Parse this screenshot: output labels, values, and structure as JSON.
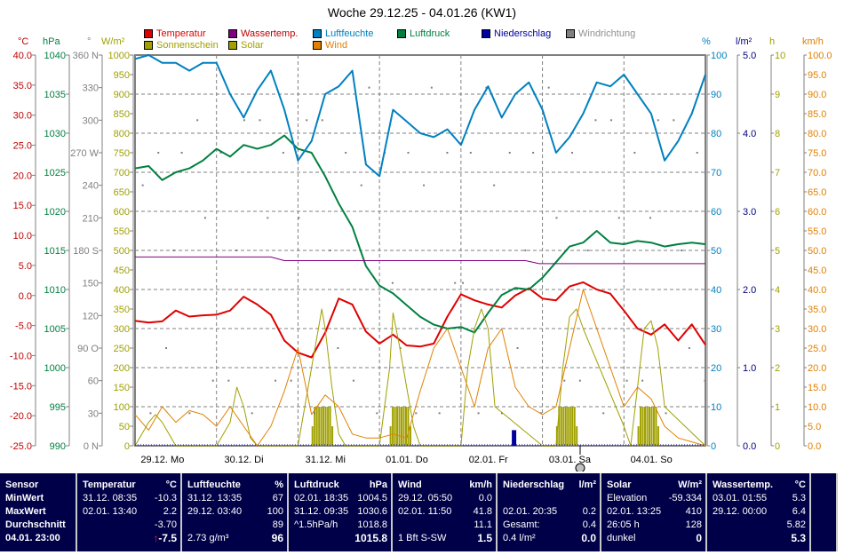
{
  "title": "Woche 29.12.25 - 04.01.26 (KW1)",
  "legend": [
    {
      "label": "Temperatur",
      "color": "#e00000"
    },
    {
      "label": "Wassertemp.",
      "color": "#800080"
    },
    {
      "label": "Luftfeuchte",
      "color": "#0080c0"
    },
    {
      "label": "Luftdruck",
      "color": "#008040"
    },
    {
      "label": "Niederschlag",
      "color": "#0000a0"
    },
    {
      "label": "Windrichtung",
      "color": "#808080"
    },
    {
      "label": "Sonnenschein",
      "color": "#a0a000"
    },
    {
      "label": "Solar",
      "color": "#a0a000"
    },
    {
      "label": "Wind",
      "color": "#e08000"
    }
  ],
  "units": {
    "temp": "°C",
    "press": "hPa",
    "dir": "°",
    "solar": "W/m²",
    "hum": "%",
    "rain": "l/m²",
    "sun": "h",
    "wind": "km/h"
  },
  "chart_data": {
    "type": "line",
    "title": "Woche 29.12.25 - 04.01.26 (KW1)",
    "x_labels": [
      "29.12. Mo",
      "30.12. Di",
      "31.12. Mi",
      "01.01. Do",
      "02.01. Fr",
      "03.01. Sa",
      "04.01. So"
    ],
    "x_range_hours": [
      0,
      168
    ],
    "grid": true,
    "axes": {
      "temp": {
        "label": "°C",
        "range": [
          -25,
          40
        ],
        "ticks": [
          "40.0",
          "35.0",
          "30.0",
          "25.0",
          "20.0",
          "15.0",
          "10.0",
          "5.0",
          "0.0",
          "-5.0",
          "-10.0",
          "-15.0",
          "-20.0",
          "-25.0"
        ],
        "color": "#c00000"
      },
      "press": {
        "label": "hPa",
        "range": [
          990,
          1040
        ],
        "ticks": [
          "1040",
          "1035",
          "1030",
          "1025",
          "1020",
          "1015",
          "1010",
          "1005",
          "1000",
          "995",
          "990"
        ],
        "color": "#008040"
      },
      "dir": {
        "label": "°",
        "range": [
          0,
          360
        ],
        "ticks": [
          "360 N",
          "330",
          "300",
          "270 W",
          "240",
          "210",
          "180 S",
          "150",
          "120",
          "90 O",
          "60",
          "30",
          "0 N"
        ],
        "color": "#808080"
      },
      "solar": {
        "label": "W/m²",
        "range": [
          0,
          1000
        ],
        "ticks": [
          "1000",
          "950",
          "900",
          "850",
          "800",
          "750",
          "700",
          "650",
          "600",
          "550",
          "500",
          "450",
          "400",
          "350",
          "300",
          "250",
          "200",
          "150",
          "100",
          "50",
          "0"
        ],
        "color": "#a0a000"
      },
      "hum": {
        "label": "%",
        "range": [
          0,
          100
        ],
        "ticks": [
          "100",
          "90",
          "80",
          "70",
          "60",
          "50",
          "40",
          "30",
          "20",
          "10",
          "0"
        ],
        "color": "#0080c0"
      },
      "rain": {
        "label": "l/m²",
        "range": [
          0,
          5
        ],
        "ticks": [
          "5.0",
          "4.0",
          "3.0",
          "2.0",
          "1.0",
          "0.0"
        ],
        "color": "#000080"
      },
      "sun": {
        "label": "h",
        "range": [
          0,
          10
        ],
        "ticks": [
          "10",
          "9",
          "8",
          "7",
          "6",
          "5",
          "4",
          "3",
          "2",
          "1",
          "0"
        ],
        "color": "#a0a000"
      },
      "wind": {
        "label": "km/h",
        "range": [
          0,
          100
        ],
        "ticks": [
          "100.0",
          "95.0",
          "90.0",
          "85.0",
          "80.0",
          "75.0",
          "70.0",
          "65.0",
          "60.0",
          "55.0",
          "50.0",
          "45.0",
          "40.0",
          "35.0",
          "30.0",
          "25.0",
          "20.0",
          "15.0",
          "10.0",
          "5.0",
          "0.0"
        ],
        "color": "#e08000"
      }
    },
    "series": [
      {
        "name": "Temperatur",
        "axis": "temp",
        "color": "#e00000",
        "x": [
          0,
          4,
          8,
          12,
          16,
          20,
          24,
          28,
          32,
          36,
          40,
          44,
          48,
          52,
          56,
          60,
          64,
          68,
          72,
          76,
          80,
          84,
          88,
          92,
          96,
          100,
          104,
          108,
          112,
          116,
          120,
          124,
          128,
          132,
          136,
          140,
          144,
          148,
          152,
          156,
          160,
          164,
          168
        ],
        "y": [
          -4.2,
          -4.5,
          -4.3,
          -2.5,
          -3.5,
          -3.3,
          -3.2,
          -2.5,
          -0.2,
          -1.5,
          -3.2,
          -7.5,
          -9.5,
          -10.3,
          -6.2,
          -0.5,
          -1.5,
          -6.0,
          -8.0,
          -6.5,
          -8.3,
          -8.5,
          -8.0,
          -3.5,
          0.2,
          -0.8,
          -1.5,
          -2.0,
          0.0,
          1.2,
          -0.5,
          -0.8,
          1.5,
          2.2,
          1.0,
          0.3,
          -2.5,
          -5.5,
          -6.5,
          -4.8,
          -7.5,
          -4.8,
          -8.2
        ]
      },
      {
        "name": "Luftdruck",
        "axis": "press",
        "color": "#008040",
        "x": [
          0,
          4,
          8,
          12,
          16,
          20,
          24,
          28,
          32,
          36,
          40,
          44,
          48,
          52,
          56,
          60,
          64,
          68,
          72,
          76,
          80,
          84,
          88,
          92,
          96,
          100,
          104,
          108,
          112,
          116,
          120,
          124,
          128,
          132,
          136,
          140,
          144,
          148,
          152,
          156,
          160,
          164,
          168
        ],
        "y": [
          1025.5,
          1025.8,
          1024.0,
          1025.0,
          1025.5,
          1026.5,
          1028.0,
          1027.0,
          1028.5,
          1028.0,
          1028.5,
          1029.7,
          1028.0,
          1027.5,
          1024.5,
          1021.0,
          1018.0,
          1013.0,
          1010.5,
          1009.5,
          1008.0,
          1006.5,
          1005.5,
          1005.0,
          1005.2,
          1004.5,
          1007.0,
          1009.3,
          1010.2,
          1010.0,
          1011.5,
          1013.5,
          1015.5,
          1016.0,
          1017.5,
          1016.0,
          1015.8,
          1016.2,
          1016.0,
          1015.5,
          1015.8,
          1016.0,
          1015.8
        ]
      },
      {
        "name": "Luftfeuchte",
        "axis": "hum",
        "color": "#0080c0",
        "x": [
          0,
          4,
          8,
          12,
          16,
          20,
          24,
          28,
          32,
          36,
          40,
          44,
          48,
          52,
          56,
          60,
          64,
          68,
          72,
          76,
          80,
          84,
          88,
          92,
          96,
          100,
          104,
          108,
          112,
          116,
          120,
          124,
          128,
          132,
          136,
          140,
          144,
          148,
          152,
          156,
          160,
          164,
          168
        ],
        "y": [
          99,
          100,
          98,
          98,
          96,
          98,
          98,
          90,
          84,
          91,
          96,
          86,
          73,
          78,
          90,
          92,
          96,
          72,
          69,
          86,
          83,
          80,
          79,
          81,
          77,
          86,
          92,
          84,
          90,
          93,
          86,
          75,
          79,
          85,
          93,
          92,
          95,
          90,
          85,
          73,
          78,
          85,
          95
        ]
      },
      {
        "name": "Wassertemp.",
        "axis": "temp",
        "color": "#800080",
        "x": [
          0,
          40,
          44,
          115,
          119,
          168
        ],
        "y": [
          6.4,
          6.4,
          5.8,
          5.8,
          5.3,
          5.3
        ]
      },
      {
        "name": "Solar",
        "axis": "solar",
        "color": "#a0a000",
        "x": [
          0,
          4,
          6,
          8,
          12,
          14,
          16,
          24,
          28,
          30,
          32,
          34,
          36,
          48,
          52,
          54,
          55,
          56,
          58,
          60,
          62,
          72,
          75,
          76,
          78,
          80,
          82,
          84,
          96,
          98,
          100,
          102,
          104,
          106,
          120,
          124,
          126,
          128,
          130,
          132,
          144,
          146,
          148,
          150,
          152,
          154,
          156,
          168
        ],
        "y": [
          0,
          60,
          80,
          60,
          0,
          0,
          0,
          0,
          60,
          150,
          100,
          20,
          0,
          0,
          200,
          300,
          350,
          300,
          150,
          30,
          0,
          0,
          200,
          340,
          250,
          150,
          50,
          0,
          0,
          200,
          300,
          350,
          300,
          100,
          0,
          0,
          200,
          330,
          350,
          300,
          50,
          0,
          150,
          300,
          320,
          250,
          100,
          0
        ]
      },
      {
        "name": "Wind",
        "axis": "wind",
        "color": "#e08000",
        "x": [
          0,
          4,
          8,
          12,
          16,
          20,
          24,
          28,
          32,
          36,
          40,
          44,
          48,
          52,
          56,
          60,
          64,
          68,
          72,
          76,
          80,
          84,
          88,
          92,
          96,
          100,
          104,
          108,
          112,
          116,
          120,
          124,
          128,
          132,
          136,
          140,
          144,
          148,
          152,
          156,
          160,
          164,
          168
        ],
        "y": [
          8,
          4,
          10,
          6,
          9,
          8,
          5,
          10,
          5,
          0,
          5,
          14,
          25,
          8,
          13,
          10,
          3,
          2,
          2,
          3,
          2,
          14,
          25,
          30,
          20,
          10,
          25,
          30,
          15,
          10,
          8,
          10,
          25,
          40,
          30,
          20,
          10,
          15,
          12,
          5,
          2,
          1,
          0
        ]
      }
    ],
    "bars": [
      {
        "name": "Niederschlag",
        "axis": "rain",
        "color": "#0000a0",
        "x": [
          111.5
        ],
        "y": [
          0.2
        ]
      },
      {
        "name": "Sonnenschein",
        "axis": "sun",
        "color": "#a0a000",
        "note": "hourly sunshine bars around midday on 31.12., 01.01., 03.01., 04.01."
      }
    ]
  },
  "stats": {
    "sensor": {
      "header": "Sensor",
      "rows": [
        "MinWert",
        "MaxWert",
        "Durchschnitt",
        "04.01. 23:00"
      ]
    },
    "temp": {
      "header": "Temperatur",
      "unit": "°C",
      "min_time": "31.12.  08:35",
      "min": "-10.3",
      "max_time": "02.01.  13:40",
      "max": "2.2",
      "avg": "-3.70",
      "trend_icon": "↑",
      "current": "-7.5"
    },
    "hum": {
      "header": "Luftfeuchte",
      "unit": "%",
      "min_time": "31.12.  13:35",
      "min": "67",
      "max_time": "29.12.  03:40",
      "max": "100",
      "avg": "89",
      "abs": "2.73 g/m³",
      "current": "96"
    },
    "press": {
      "header": "Luftdruck",
      "unit": "hPa",
      "min_time": "02.01.  18:35",
      "min": "1004.5",
      "max_time": "31.12.  09:35",
      "max": "1030.6",
      "trend": "^1.5hPa/h",
      "avg": "1018.8",
      "current": "1015.8"
    },
    "wind": {
      "header": "Wind",
      "unit": "km/h",
      "min_time": "29.12.  05:50",
      "min": "0.0",
      "max_time": "02.01.  11:50",
      "max": "41.8",
      "avg": "11.1",
      "bft": "1 Bft S-SW",
      "current": "1.5"
    },
    "rain": {
      "header": "Niederschlag",
      "unit": "l/m²",
      "max_time": "02.01.  20:35",
      "max": "0.2",
      "total_label": "Gesamt:",
      "total": "0.4",
      "cur_label": "0.4 l/m²",
      "current": "0.0"
    },
    "solar": {
      "header": "Solar",
      "unit": "W/m²",
      "elev_label": "Elevation",
      "elev": "-59.334",
      "max_time": "02.01.  13:25",
      "max": "410",
      "sun_label": "26:05 h",
      "avg": "128",
      "state": "dunkel",
      "current": "0"
    },
    "water": {
      "header": "Wassertemp.",
      "unit": "°C",
      "min_time": "03.01.  01:55",
      "min": "5.3",
      "max_time": "29.12.  00:00",
      "max": "6.4",
      "avg": "5.82",
      "current": "5.3"
    }
  }
}
